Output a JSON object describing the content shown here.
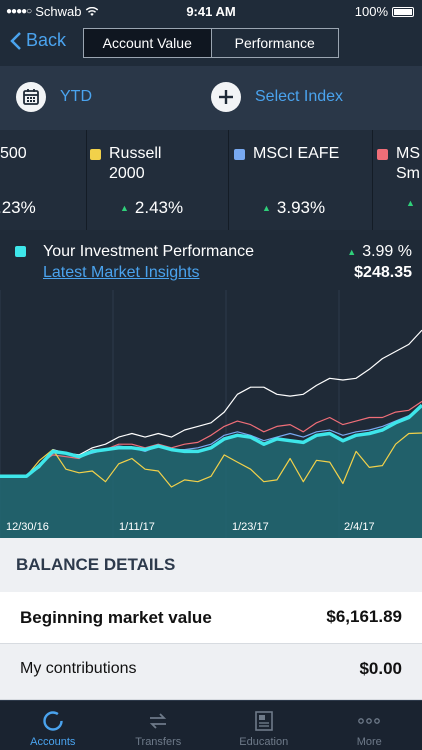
{
  "status": {
    "carrier": "Schwab",
    "time": "9:41 AM",
    "battery": "100%"
  },
  "nav": {
    "back_label": "Back",
    "tabs": [
      {
        "label": "Account Value",
        "active": true
      },
      {
        "label": "Performance",
        "active": false
      }
    ]
  },
  "filters": {
    "period": "YTD",
    "index": "Select Index"
  },
  "indices": [
    {
      "name": "500",
      "value": ".23%",
      "color": ""
    },
    {
      "name": "Russell 2000",
      "value": "2.43%",
      "color": "#f2d14a"
    },
    {
      "name": "MSCI EAFE",
      "value": "3.93%",
      "color": "#78a9f1"
    },
    {
      "name": "MS Sm",
      "value": "",
      "color": "#f06e78"
    }
  ],
  "performance": {
    "title": "Your Investment Performance",
    "link": "Latest Market Insights",
    "percent": "3.99 %",
    "amount": "$248.35",
    "color": "#3ee6ea"
  },
  "chart_data": {
    "type": "line",
    "x_labels": [
      "12/30/16",
      "1/11/17",
      "1/23/17",
      "2/4/17"
    ],
    "series": [
      {
        "name": "Your Investment Performance",
        "color": "#3ee6ea",
        "values": [
          0,
          0,
          0,
          0.6,
          1.4,
          1.3,
          1.1,
          1.4,
          1.5,
          1.6,
          1.6,
          1.5,
          1.7,
          1.5,
          1.4,
          1.4,
          1.6,
          2.1,
          2.3,
          2.2,
          1.8,
          2.1,
          2.0,
          1.9,
          2.3,
          2.4,
          2.0,
          2.3,
          2.4,
          2.6,
          3.0,
          3.3,
          3.99
        ]
      },
      {
        "color": "#ffffff",
        "values": [
          0,
          0,
          0,
          0.5,
          1.5,
          1.3,
          1.2,
          1.6,
          1.8,
          2.2,
          2.4,
          2.2,
          2.4,
          2.2,
          2.6,
          2.8,
          3.0,
          3.6,
          4.6,
          5.0,
          5.0,
          4.6,
          4.5,
          4.6,
          5.1,
          5.5,
          5.4,
          5.5,
          6.0,
          6.6,
          7.0,
          7.4,
          8.2
        ]
      },
      {
        "color": "#f06e78",
        "values": [
          0,
          0,
          0,
          0.7,
          1.2,
          1.1,
          1.0,
          1.5,
          1.5,
          1.8,
          1.8,
          1.6,
          1.8,
          1.6,
          1.8,
          1.9,
          2.3,
          2.8,
          3.1,
          2.9,
          2.5,
          2.8,
          2.9,
          2.5,
          3.0,
          3.3,
          2.9,
          3.1,
          3.3,
          3.3,
          3.6,
          3.7,
          4.2
        ]
      },
      {
        "color": "#78a9f1",
        "values": [
          0,
          0,
          0,
          0.6,
          1.3,
          1.3,
          1.1,
          1.3,
          1.5,
          1.7,
          1.6,
          1.4,
          1.7,
          1.5,
          1.5,
          1.6,
          1.8,
          2.3,
          2.5,
          2.3,
          2.0,
          2.2,
          2.4,
          2.2,
          2.5,
          2.6,
          2.3,
          2.5,
          2.6,
          2.8,
          3.1,
          3.4,
          3.93
        ]
      },
      {
        "color": "#f2d14a",
        "values": [
          0,
          0,
          0,
          0.9,
          1.5,
          0.4,
          0.2,
          0.3,
          -0.3,
          0.7,
          1.0,
          0.4,
          0.3,
          -0.6,
          -0.2,
          -0.3,
          0.0,
          1.2,
          0.8,
          0.4,
          -0.3,
          -0.2,
          1.0,
          -0.3,
          0.9,
          0.8,
          -0.4,
          1.4,
          0.5,
          0.6,
          1.8,
          2.4,
          2.43
        ]
      }
    ],
    "ylim": [
      -2,
      10
    ],
    "grid": true
  },
  "balance": {
    "header": "BALANCE DETAILS",
    "rows": [
      {
        "label": "Beginning market value",
        "amount": "$6,161.89",
        "bold": true
      },
      {
        "label": "My contributions",
        "amount": "$0.00",
        "bold": false
      }
    ]
  },
  "tabbar": [
    {
      "label": "Accounts",
      "icon": "accounts-icon",
      "active": true
    },
    {
      "label": "Transfers",
      "icon": "transfers-icon",
      "active": false
    },
    {
      "label": "Education",
      "icon": "education-icon",
      "active": false
    },
    {
      "label": "More",
      "icon": "more-icon",
      "active": false
    }
  ]
}
